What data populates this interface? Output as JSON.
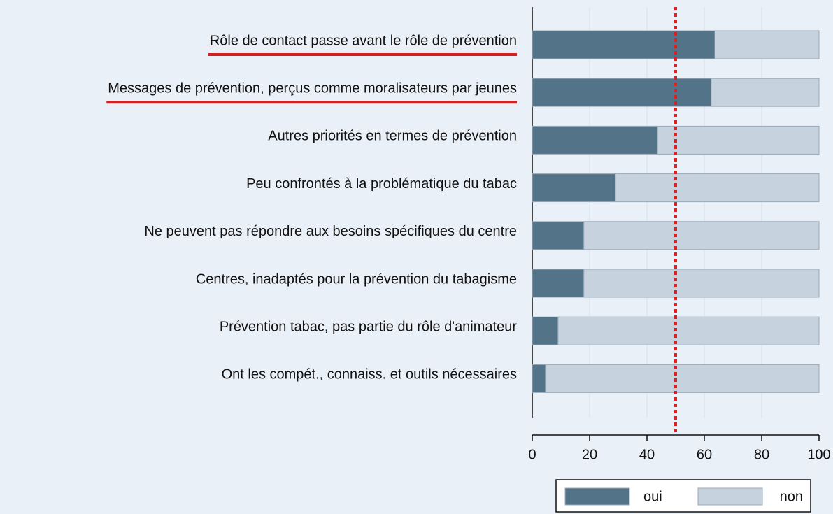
{
  "chart_data": {
    "type": "stacked_barh",
    "categories": [
      "Rôle de contact passe avant le rôle de prévention",
      "Messages de prévention, perçus comme moralisateurs par jeunes",
      "Autres priorités en termes de prévention",
      "Peu confrontés à la problématique du tabac",
      "Ne peuvent pas répondre aux besoins spécifiques du centre",
      "Centres, inadaptés pour la prévention du tabagisme",
      "Prévention tabac, pas partie du rôle d'animateur",
      "Ont les compét., connaiss. et outils nécessaires"
    ],
    "series": [
      {
        "name": "oui",
        "color": "#537389",
        "values": [
          63.7,
          62.4,
          43.7,
          29,
          18,
          18,
          9,
          4.6
        ]
      },
      {
        "name": "non",
        "color": "#c6d3df",
        "values": [
          36.3,
          37.6,
          56.3,
          71,
          82,
          82,
          91,
          95.4
        ]
      }
    ],
    "xlim": [
      0,
      100
    ],
    "xticks": [
      0,
      20,
      40,
      60,
      80,
      100
    ],
    "grid": true,
    "reference_line": {
      "value": 50,
      "color": "#e02020"
    },
    "highlighted": [
      0,
      1
    ],
    "highlight_color": "#d62020",
    "legend": "bottom"
  }
}
